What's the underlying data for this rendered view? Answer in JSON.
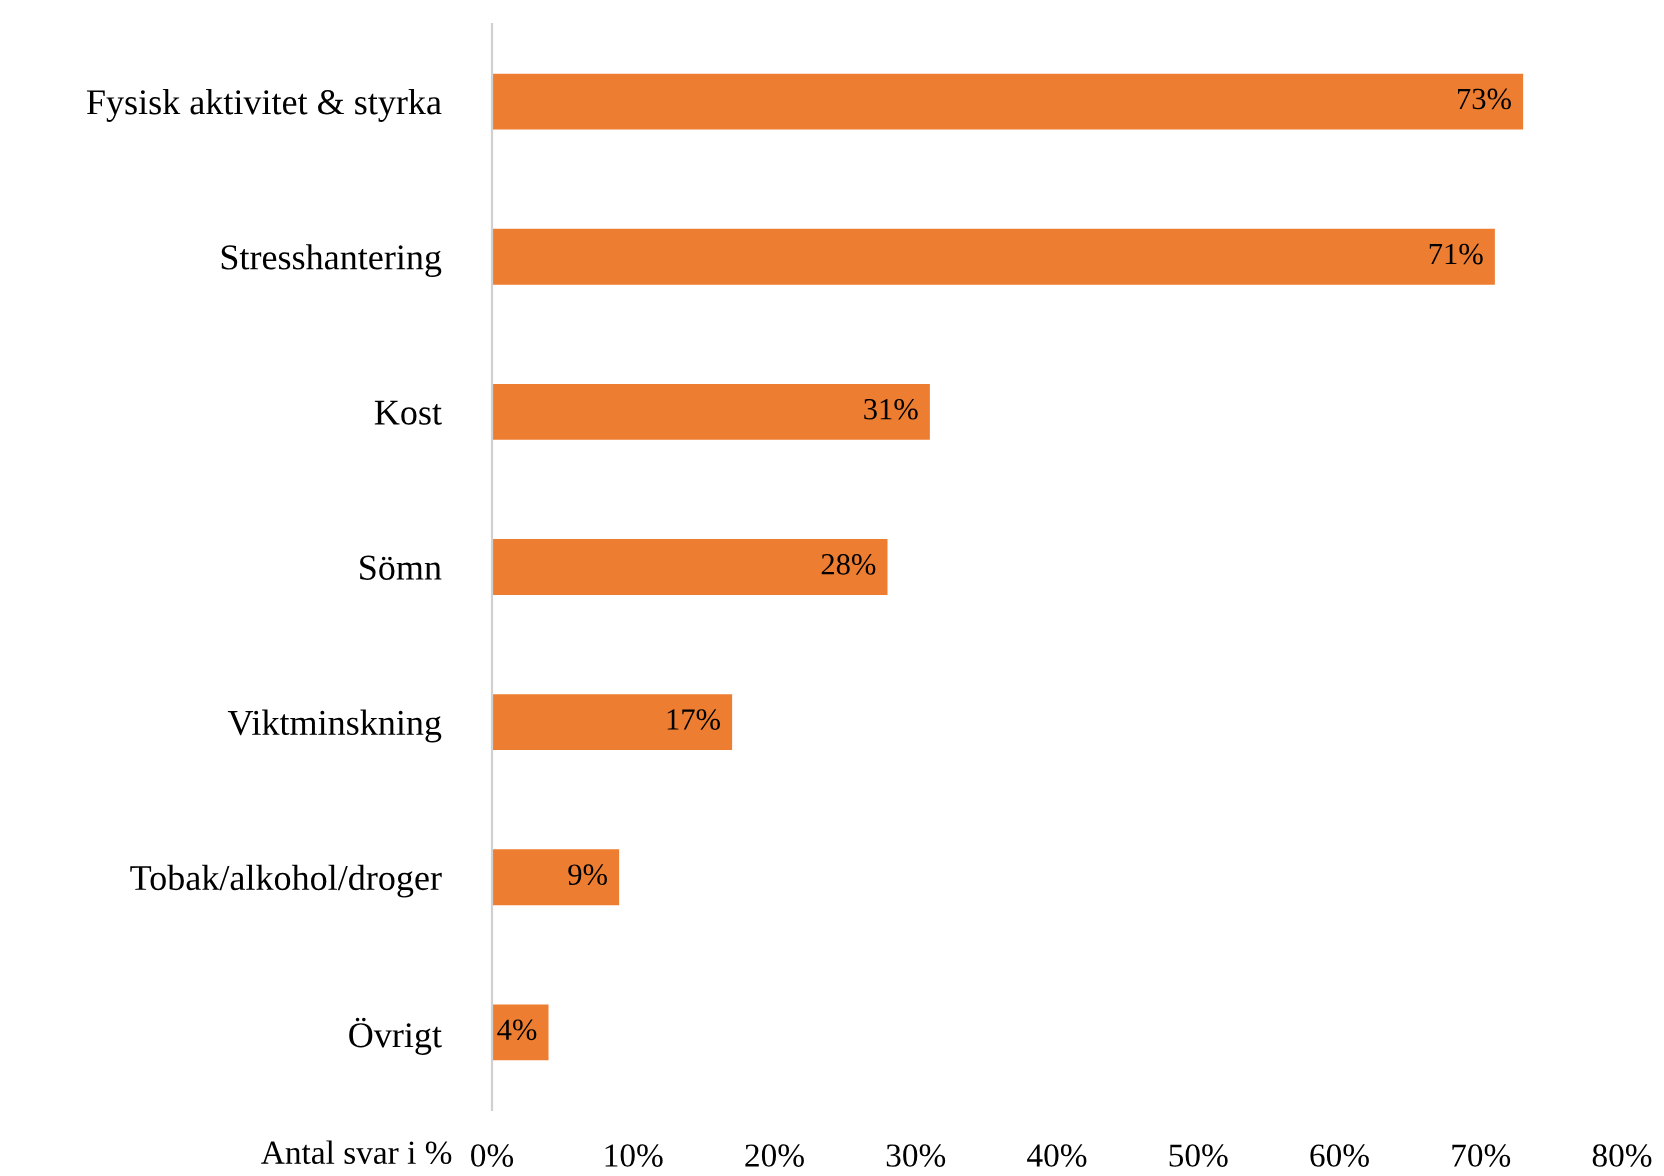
{
  "chart_data": {
    "type": "bar",
    "orientation": "horizontal",
    "xlabel": "Antal svar i %",
    "categories": [
      "Fysisk aktivitet & styrka",
      "Stresshantering",
      "Kost",
      "Sömn",
      "Viktminskning",
      "Tobak/alkohol/droger",
      "Övrigt"
    ],
    "values": [
      73,
      71,
      31,
      28,
      17,
      9,
      4
    ],
    "value_labels": [
      "73%",
      "71%",
      "31%",
      "28%",
      "17%",
      "9%",
      "4%"
    ],
    "color": "#ed7d31",
    "xlim": [
      0,
      80
    ],
    "xticks": [
      {
        "value": 0,
        "label": "0%"
      },
      {
        "value": 10,
        "label": "10%"
      },
      {
        "value": 20,
        "label": "20%"
      },
      {
        "value": 30,
        "label": "30%"
      },
      {
        "value": 40,
        "label": "40%"
      },
      {
        "value": 50,
        "label": "50%"
      },
      {
        "value": 60,
        "label": "60%"
      },
      {
        "value": 70,
        "label": "70%"
      },
      {
        "value": 80,
        "label": "80%"
      }
    ],
    "grid": false,
    "legend": false
  }
}
